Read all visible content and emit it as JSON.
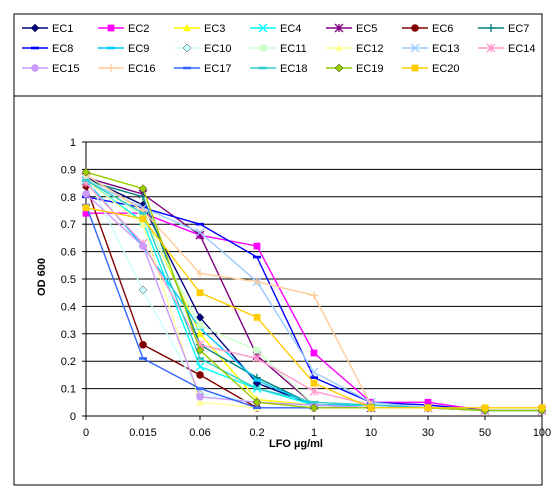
{
  "chart_data": {
    "type": "line",
    "title": "",
    "xlabel": "LFO µg/ml",
    "ylabel": "OD 600",
    "categories": [
      "0",
      "0.015",
      "0.06",
      "0.2",
      "1",
      "10",
      "30",
      "50",
      "100"
    ],
    "yticks": [
      "0",
      "0.1",
      "0.2",
      "0.3",
      "0.4",
      "0.5",
      "0.6",
      "0.7",
      "0.8",
      "0.9",
      "1"
    ],
    "ylim": [
      0,
      1
    ],
    "grid": "horizontal",
    "legend_position": "top",
    "series": [
      {
        "name": "EC1",
        "color": "#000080",
        "marker": "diamond",
        "values": [
          0.87,
          0.77,
          0.36,
          0.12,
          0.04,
          0.03,
          0.03,
          0.02,
          0.02
        ]
      },
      {
        "name": "EC2",
        "color": "#FF00FF",
        "marker": "square",
        "values": [
          0.74,
          0.74,
          0.66,
          0.62,
          0.23,
          0.05,
          0.05,
          0.02,
          0.02
        ]
      },
      {
        "name": "EC3",
        "color": "#FFFF00",
        "marker": "triangle",
        "values": [
          0.86,
          0.74,
          0.3,
          0.06,
          0.04,
          0.03,
          0.03,
          0.02,
          0.02
        ]
      },
      {
        "name": "EC4",
        "color": "#00FFFF",
        "marker": "x",
        "values": [
          0.86,
          0.71,
          0.18,
          0.1,
          0.04,
          0.03,
          0.03,
          0.02,
          0.02
        ]
      },
      {
        "name": "EC5",
        "color": "#800080",
        "marker": "star",
        "values": [
          0.87,
          0.81,
          0.66,
          0.22,
          0.04,
          0.03,
          0.03,
          0.02,
          0.02
        ]
      },
      {
        "name": "EC6",
        "color": "#800000",
        "marker": "circle",
        "values": [
          0.84,
          0.26,
          0.15,
          0.03,
          0.03,
          0.03,
          0.03,
          0.02,
          0.02
        ]
      },
      {
        "name": "EC7",
        "color": "#008080",
        "marker": "plus",
        "values": [
          0.86,
          0.8,
          0.26,
          0.14,
          0.04,
          0.04,
          0.03,
          0.02,
          0.02
        ]
      },
      {
        "name": "EC8",
        "color": "#0000FF",
        "marker": "dash",
        "values": [
          0.8,
          0.76,
          0.7,
          0.58,
          0.14,
          0.05,
          0.04,
          0.02,
          0.02
        ]
      },
      {
        "name": "EC9",
        "color": "#00CCFF",
        "marker": "dash",
        "values": [
          0.86,
          0.62,
          0.32,
          0.13,
          0.04,
          0.04,
          0.03,
          0.02,
          0.02
        ]
      },
      {
        "name": "EC10",
        "color": "#CCFFFF",
        "marker": "diamond",
        "values": [
          0.88,
          0.46,
          0.08,
          0.05,
          0.04,
          0.03,
          0.03,
          0.02,
          0.02
        ]
      },
      {
        "name": "EC11",
        "color": "#CCFFCC",
        "marker": "square",
        "values": [
          0.87,
          0.73,
          0.33,
          0.24,
          0.04,
          0.03,
          0.03,
          0.02,
          0.02
        ]
      },
      {
        "name": "EC12",
        "color": "#FFFF99",
        "marker": "triangle",
        "values": [
          0.86,
          0.7,
          0.05,
          0.03,
          0.03,
          0.03,
          0.03,
          0.02,
          0.02
        ]
      },
      {
        "name": "EC13",
        "color": "#99CCFF",
        "marker": "x",
        "values": [
          0.86,
          0.76,
          0.67,
          0.49,
          0.16,
          0.05,
          0.03,
          0.02,
          0.02
        ]
      },
      {
        "name": "EC14",
        "color": "#FF99CC",
        "marker": "star",
        "values": [
          0.85,
          0.63,
          0.26,
          0.21,
          0.09,
          0.04,
          0.03,
          0.02,
          0.02
        ]
      },
      {
        "name": "EC15",
        "color": "#CC99FF",
        "marker": "circle",
        "values": [
          0.81,
          0.62,
          0.07,
          0.05,
          0.04,
          0.03,
          0.03,
          0.02,
          0.02
        ]
      },
      {
        "name": "EC16",
        "color": "#FFCC99",
        "marker": "plus",
        "values": [
          0.88,
          0.75,
          0.52,
          0.49,
          0.44,
          0.04,
          0.03,
          0.02,
          0.02
        ]
      },
      {
        "name": "EC17",
        "color": "#3366FF",
        "marker": "dash",
        "values": [
          0.77,
          0.21,
          0.1,
          0.03,
          0.03,
          0.03,
          0.03,
          0.02,
          0.02
        ]
      },
      {
        "name": "EC18",
        "color": "#33CCCC",
        "marker": "dash",
        "values": [
          0.86,
          0.74,
          0.21,
          0.1,
          0.05,
          0.04,
          0.03,
          0.02,
          0.02
        ]
      },
      {
        "name": "EC19",
        "color": "#99CC00",
        "marker": "diamond",
        "values": [
          0.89,
          0.83,
          0.24,
          0.05,
          0.03,
          0.03,
          0.03,
          0.02,
          0.02
        ]
      },
      {
        "name": "EC20",
        "color": "#FFCC00",
        "marker": "square",
        "values": [
          0.76,
          0.72,
          0.45,
          0.36,
          0.12,
          0.03,
          0.03,
          0.03,
          0.03
        ]
      }
    ]
  }
}
